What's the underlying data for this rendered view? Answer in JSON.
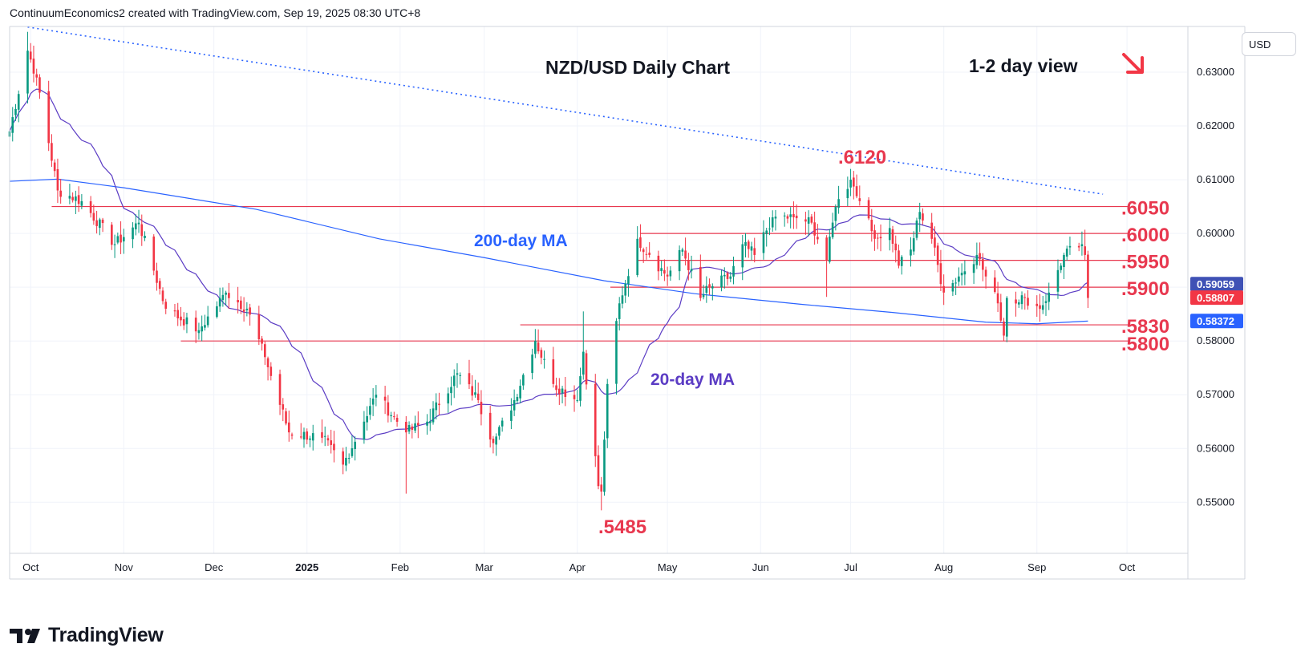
{
  "header": {
    "attribution": "ContinuumEconomics2 created with TradingView.com, Sep 19, 2025 08:30 UTC+8"
  },
  "currency_button": "USD",
  "brand": {
    "name": "TradingView"
  },
  "colors": {
    "up": "#089981",
    "down": "#f23645",
    "level_line": "#e8384f",
    "ma200": "#2962ff",
    "ma20": "#5b3cc4",
    "trendline": "#2962ff",
    "tag_red": "#f23645",
    "tag_blue": "#2962ff",
    "tag_purple": "#3f51b5"
  },
  "chart_data": {
    "type": "candlestick",
    "title": "NZD/USD Daily Chart",
    "annotation_view": "1-2 day view",
    "view_direction": "down",
    "x_axis_labels": [
      "Oct",
      "Nov",
      "Dec",
      "2025",
      "Feb",
      "Mar",
      "Apr",
      "May",
      "Jun",
      "Jul",
      "Aug",
      "Sep",
      "Oct"
    ],
    "y_axis_labels": [
      "0.63000",
      "0.62000",
      "0.61000",
      "0.60000",
      "0.59000",
      "0.58000",
      "0.57000",
      "0.56000",
      "0.55000"
    ],
    "ylim": [
      0.5405,
      0.6385
    ],
    "horizontal_levels": [
      {
        "label": ".6050",
        "value": 0.605
      },
      {
        "label": ".6000",
        "value": 0.6
      },
      {
        "label": ".5950",
        "value": 0.595
      },
      {
        "label": ".5900",
        "value": 0.59
      },
      {
        "label": ".5830",
        "value": 0.583
      },
      {
        "label": ".5800",
        "value": 0.58
      }
    ],
    "swing_labels": [
      {
        "label": ".6120",
        "value": 0.612
      },
      {
        "label": ".5485",
        "value": 0.5485
      }
    ],
    "moving_averages": [
      {
        "name": "200-day MA",
        "last": "0.58372"
      },
      {
        "name": "20-day MA",
        "last": "0.59059"
      }
    ],
    "last_price": "0.58807",
    "trendline": {
      "style": "dotted",
      "from": {
        "date": "2024-09-30",
        "value": 0.6375
      },
      "to": {
        "date": "2025-09-23",
        "value": 0.6085
      }
    },
    "ohlc_anchors": [
      {
        "date": "2024-09-24",
        "close": 0.619
      },
      {
        "date": "2024-09-30",
        "close": 0.634
      },
      {
        "date": "2024-10-03",
        "close": 0.629
      },
      {
        "date": "2024-10-10",
        "close": 0.608
      },
      {
        "date": "2024-10-18",
        "close": 0.606
      },
      {
        "date": "2024-10-29",
        "close": 0.598
      },
      {
        "date": "2024-11-06",
        "close": 0.602
      },
      {
        "date": "2024-11-10",
        "close": 0.595
      },
      {
        "date": "2024-11-15",
        "close": 0.586
      },
      {
        "date": "2024-11-26",
        "close": 0.582
      },
      {
        "date": "2024-12-05",
        "close": 0.589
      },
      {
        "date": "2024-12-12",
        "close": 0.586
      },
      {
        "date": "2024-12-18",
        "close": 0.577
      },
      {
        "date": "2024-12-26",
        "close": 0.563
      },
      {
        "date": "2025-01-06",
        "close": 0.562
      },
      {
        "date": "2025-01-13",
        "close": 0.557
      },
      {
        "date": "2025-01-20",
        "close": 0.565
      },
      {
        "date": "2025-01-24",
        "close": 0.57
      },
      {
        "date": "2025-02-03",
        "close": 0.563
      },
      {
        "date": "2025-02-10",
        "close": 0.565
      },
      {
        "date": "2025-02-20",
        "close": 0.574
      },
      {
        "date": "2025-02-27",
        "close": 0.569
      },
      {
        "date": "2025-03-04",
        "close": 0.561
      },
      {
        "date": "2025-03-11",
        "close": 0.569
      },
      {
        "date": "2025-03-18",
        "close": 0.58
      },
      {
        "date": "2025-03-24",
        "close": 0.572
      },
      {
        "date": "2025-04-01",
        "close": 0.569
      },
      {
        "date": "2025-04-03",
        "close": 0.578
      },
      {
        "date": "2025-04-08",
        "close": 0.553
      },
      {
        "date": "2025-04-09",
        "close": 0.552
      },
      {
        "date": "2025-04-11",
        "close": 0.572
      },
      {
        "date": "2025-04-15",
        "close": 0.587
      },
      {
        "date": "2025-04-21",
        "close": 0.599
      },
      {
        "date": "2025-04-25",
        "close": 0.596
      },
      {
        "date": "2025-05-01",
        "close": 0.592
      },
      {
        "date": "2025-05-06",
        "close": 0.597
      },
      {
        "date": "2025-05-12",
        "close": 0.588
      },
      {
        "date": "2025-05-15",
        "close": 0.59
      },
      {
        "date": "2025-05-22",
        "close": 0.592
      },
      {
        "date": "2025-05-26",
        "close": 0.598
      },
      {
        "date": "2025-05-30",
        "close": 0.596
      },
      {
        "date": "2025-06-05",
        "close": 0.603
      },
      {
        "date": "2025-06-12",
        "close": 0.603
      },
      {
        "date": "2025-06-18",
        "close": 0.602
      },
      {
        "date": "2025-06-23",
        "close": 0.595
      },
      {
        "date": "2025-06-26",
        "close": 0.605
      },
      {
        "date": "2025-07-01",
        "close": 0.61
      },
      {
        "date": "2025-07-04",
        "close": 0.606
      },
      {
        "date": "2025-07-09",
        "close": 0.599
      },
      {
        "date": "2025-07-14",
        "close": 0.601
      },
      {
        "date": "2025-07-17",
        "close": 0.594
      },
      {
        "date": "2025-07-21",
        "close": 0.597
      },
      {
        "date": "2025-07-24",
        "close": 0.604
      },
      {
        "date": "2025-07-28",
        "close": 0.599
      },
      {
        "date": "2025-08-01",
        "close": 0.589
      },
      {
        "date": "2025-08-06",
        "close": 0.592
      },
      {
        "date": "2025-08-12",
        "close": 0.596
      },
      {
        "date": "2025-08-15",
        "close": 0.592
      },
      {
        "date": "2025-08-19",
        "close": 0.587
      },
      {
        "date": "2025-08-21",
        "close": 0.581
      },
      {
        "date": "2025-08-22",
        "close": 0.588
      },
      {
        "date": "2025-08-28",
        "close": 0.588
      },
      {
        "date": "2025-09-02",
        "close": 0.586
      },
      {
        "date": "2025-09-05",
        "close": 0.589
      },
      {
        "date": "2025-09-10",
        "close": 0.596
      },
      {
        "date": "2025-09-16",
        "close": 0.598
      },
      {
        "date": "2025-09-17",
        "close": 0.596
      },
      {
        "date": "2025-09-18",
        "close": 0.588
      }
    ]
  }
}
